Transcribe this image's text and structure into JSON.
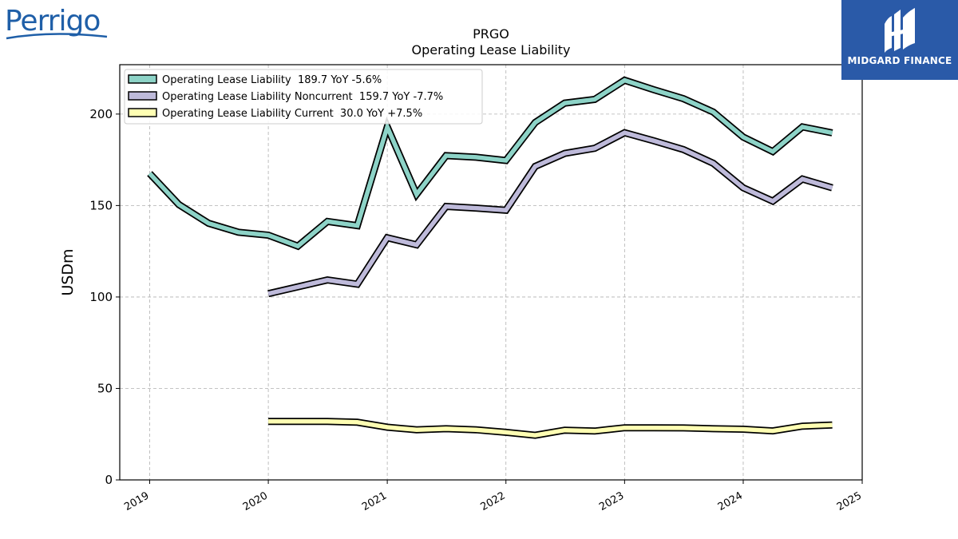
{
  "branding": {
    "company_logo_text": "Perrigo",
    "publisher_logo_text": "MIDGARD FINANCE"
  },
  "colors": {
    "total": "#8dd3c7",
    "noncurrent": "#bebada",
    "current": "#ffffb3",
    "outline": "#000000",
    "grid": "#b0b0b0",
    "publisher_bg": "#2a5aa8",
    "company_logo": "#1f5fa8"
  },
  "chart_data": {
    "type": "line",
    "title": [
      "PRGO",
      "Operating Lease Liability"
    ],
    "ylabel": "USDm",
    "xlabel": "",
    "x_range": [
      "2018-10-01",
      "2025-01-01"
    ],
    "ylim": [
      0,
      227
    ],
    "y_ticks": [
      0,
      50,
      100,
      150,
      200
    ],
    "x_ticks": [
      "2019",
      "2020",
      "2021",
      "2022",
      "2023",
      "2024",
      "2025"
    ],
    "x_tick_dates": [
      "2019-01-01",
      "2020-01-01",
      "2021-01-01",
      "2022-01-01",
      "2023-01-01",
      "2024-01-01",
      "2025-01-01"
    ],
    "grid": true,
    "legend_position": "top-left",
    "series": [
      {
        "name": "Operating Lease Liability  189.7 YoY -5.6%",
        "color_key": "total",
        "x": [
          "2019-01-01",
          "2019-04-01",
          "2019-07-01",
          "2019-10-01",
          "2020-01-01",
          "2020-04-01",
          "2020-07-01",
          "2020-10-01",
          "2021-01-01",
          "2021-04-01",
          "2021-07-01",
          "2021-10-01",
          "2022-01-01",
          "2022-04-01",
          "2022-07-01",
          "2022-10-01",
          "2023-01-01",
          "2023-04-01",
          "2023-07-01",
          "2023-10-01",
          "2024-01-01",
          "2024-04-01",
          "2024-07-01",
          "2024-10-01"
        ],
        "y": [
          167.5,
          150.5,
          140.3,
          135.4,
          133.8,
          127.8,
          141.3,
          139.0,
          193.0,
          156.1,
          177.3,
          176.4,
          174.6,
          195.4,
          206.0,
          208.0,
          218.5,
          213.3,
          208.4,
          201.1,
          187.4,
          179.5,
          193.0,
          189.7
        ]
      },
      {
        "name": "Operating Lease Liability Noncurrent  159.7 YoY -7.7%",
        "color_key": "noncurrent",
        "x": [
          "2020-01-01",
          "2020-07-01",
          "2020-10-01",
          "2021-01-01",
          "2021-04-01",
          "2021-07-01",
          "2021-10-01",
          "2022-01-01",
          "2022-04-01",
          "2022-07-01",
          "2022-10-01",
          "2023-01-01",
          "2023-04-01",
          "2023-07-01",
          "2023-10-01",
          "2024-01-01",
          "2024-04-01",
          "2024-07-01",
          "2024-10-01"
        ],
        "y": [
          101.8,
          109.3,
          107.0,
          132.4,
          128.5,
          149.5,
          148.6,
          147.4,
          171.4,
          178.5,
          181.3,
          189.8,
          185.4,
          180.6,
          173.1,
          159.7,
          152.4,
          164.5,
          159.7
        ]
      },
      {
        "name": "Operating Lease Liability Current  30.0 YoY +7.5%",
        "color_key": "current",
        "x": [
          "2020-01-01",
          "2020-07-01",
          "2020-10-01",
          "2021-01-01",
          "2021-04-01",
          "2021-07-01",
          "2021-10-01",
          "2022-01-01",
          "2022-04-01",
          "2022-07-01",
          "2022-10-01",
          "2023-01-01",
          "2023-04-01",
          "2023-07-01",
          "2023-10-01",
          "2024-01-01",
          "2024-04-01",
          "2024-07-01",
          "2024-10-01"
        ],
        "y": [
          32.0,
          32.0,
          31.5,
          28.8,
          27.4,
          28.0,
          27.4,
          26.0,
          24.4,
          27.2,
          26.7,
          28.5,
          28.5,
          28.4,
          28.0,
          27.7,
          26.8,
          29.4,
          30.0
        ]
      }
    ]
  }
}
